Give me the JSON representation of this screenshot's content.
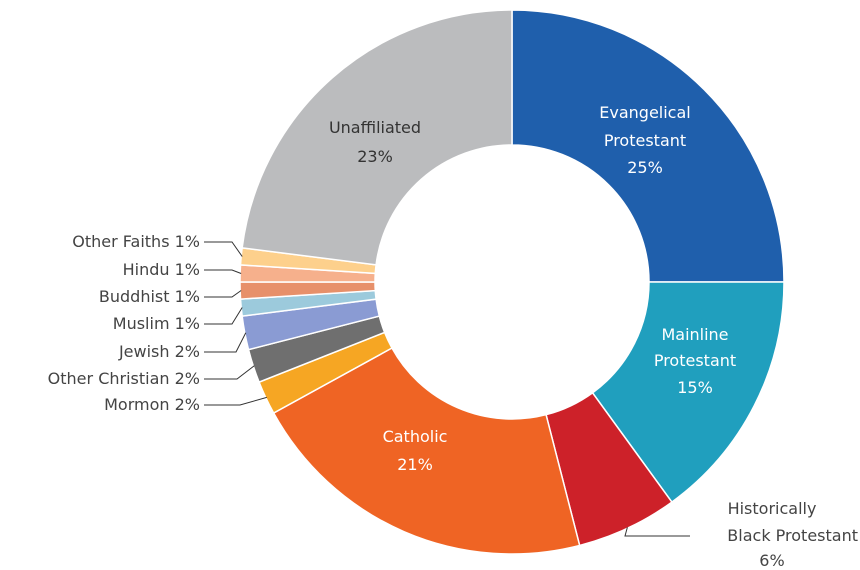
{
  "chart_data": {
    "type": "pie",
    "donut": true,
    "title": "",
    "legend": "none",
    "unit": "%",
    "slices": [
      {
        "label": "Evangelical Protestant",
        "value": 25,
        "display": [
          "Evangelical",
          "Protestant",
          "25%"
        ],
        "color": "#1f5fac",
        "label_placement": "inside",
        "label_color": "#ffffff"
      },
      {
        "label": "Mainline Protestant",
        "value": 15,
        "display": [
          "Mainline",
          "Protestant",
          "15%"
        ],
        "color": "#209fbe",
        "label_placement": "inside",
        "label_color": "#ffffff"
      },
      {
        "label": "Historically Black Protestant",
        "value": 6,
        "display": [
          "Historically",
          "Black Protestant",
          "6%"
        ],
        "color": "#cd2129",
        "label_placement": "outside",
        "label_color": "#444444"
      },
      {
        "label": "Catholic",
        "value": 21,
        "display": [
          "Catholic",
          "21%"
        ],
        "color": "#ef6424",
        "label_placement": "inside",
        "label_color": "#ffffff"
      },
      {
        "label": "Mormon",
        "value": 2,
        "display": [
          "Mormon 2%"
        ],
        "color": "#f6a623",
        "label_placement": "outside",
        "label_color": "#444444"
      },
      {
        "label": "Other Christian",
        "value": 2,
        "display": [
          "Other Christian 2%"
        ],
        "color": "#6f6f6f",
        "label_placement": "outside",
        "label_color": "#444444"
      },
      {
        "label": "Jewish",
        "value": 2,
        "display": [
          "Jewish 2%"
        ],
        "color": "#8a9bd3",
        "label_placement": "outside",
        "label_color": "#444444"
      },
      {
        "label": "Muslim",
        "value": 1,
        "display": [
          "Muslim 1%"
        ],
        "color": "#9ccadc",
        "label_placement": "outside",
        "label_color": "#444444"
      },
      {
        "label": "Buddhist",
        "value": 1,
        "display": [
          "Buddhist 1%"
        ],
        "color": "#e7906a",
        "label_placement": "outside",
        "label_color": "#444444"
      },
      {
        "label": "Hindu",
        "value": 1,
        "display": [
          "Hindu 1%"
        ],
        "color": "#f6b08c",
        "label_placement": "outside",
        "label_color": "#444444"
      },
      {
        "label": "Other Faiths",
        "value": 1,
        "display": [
          "Other Faiths 1%"
        ],
        "color": "#fdd08c",
        "label_placement": "outside",
        "label_color": "#444444"
      },
      {
        "label": "Unaffiliated",
        "value": 23,
        "display": [
          "Unaffiliated",
          "23%"
        ],
        "color": "#bbbcbe",
        "label_placement": "inside",
        "label_color": "#333333"
      }
    ]
  }
}
